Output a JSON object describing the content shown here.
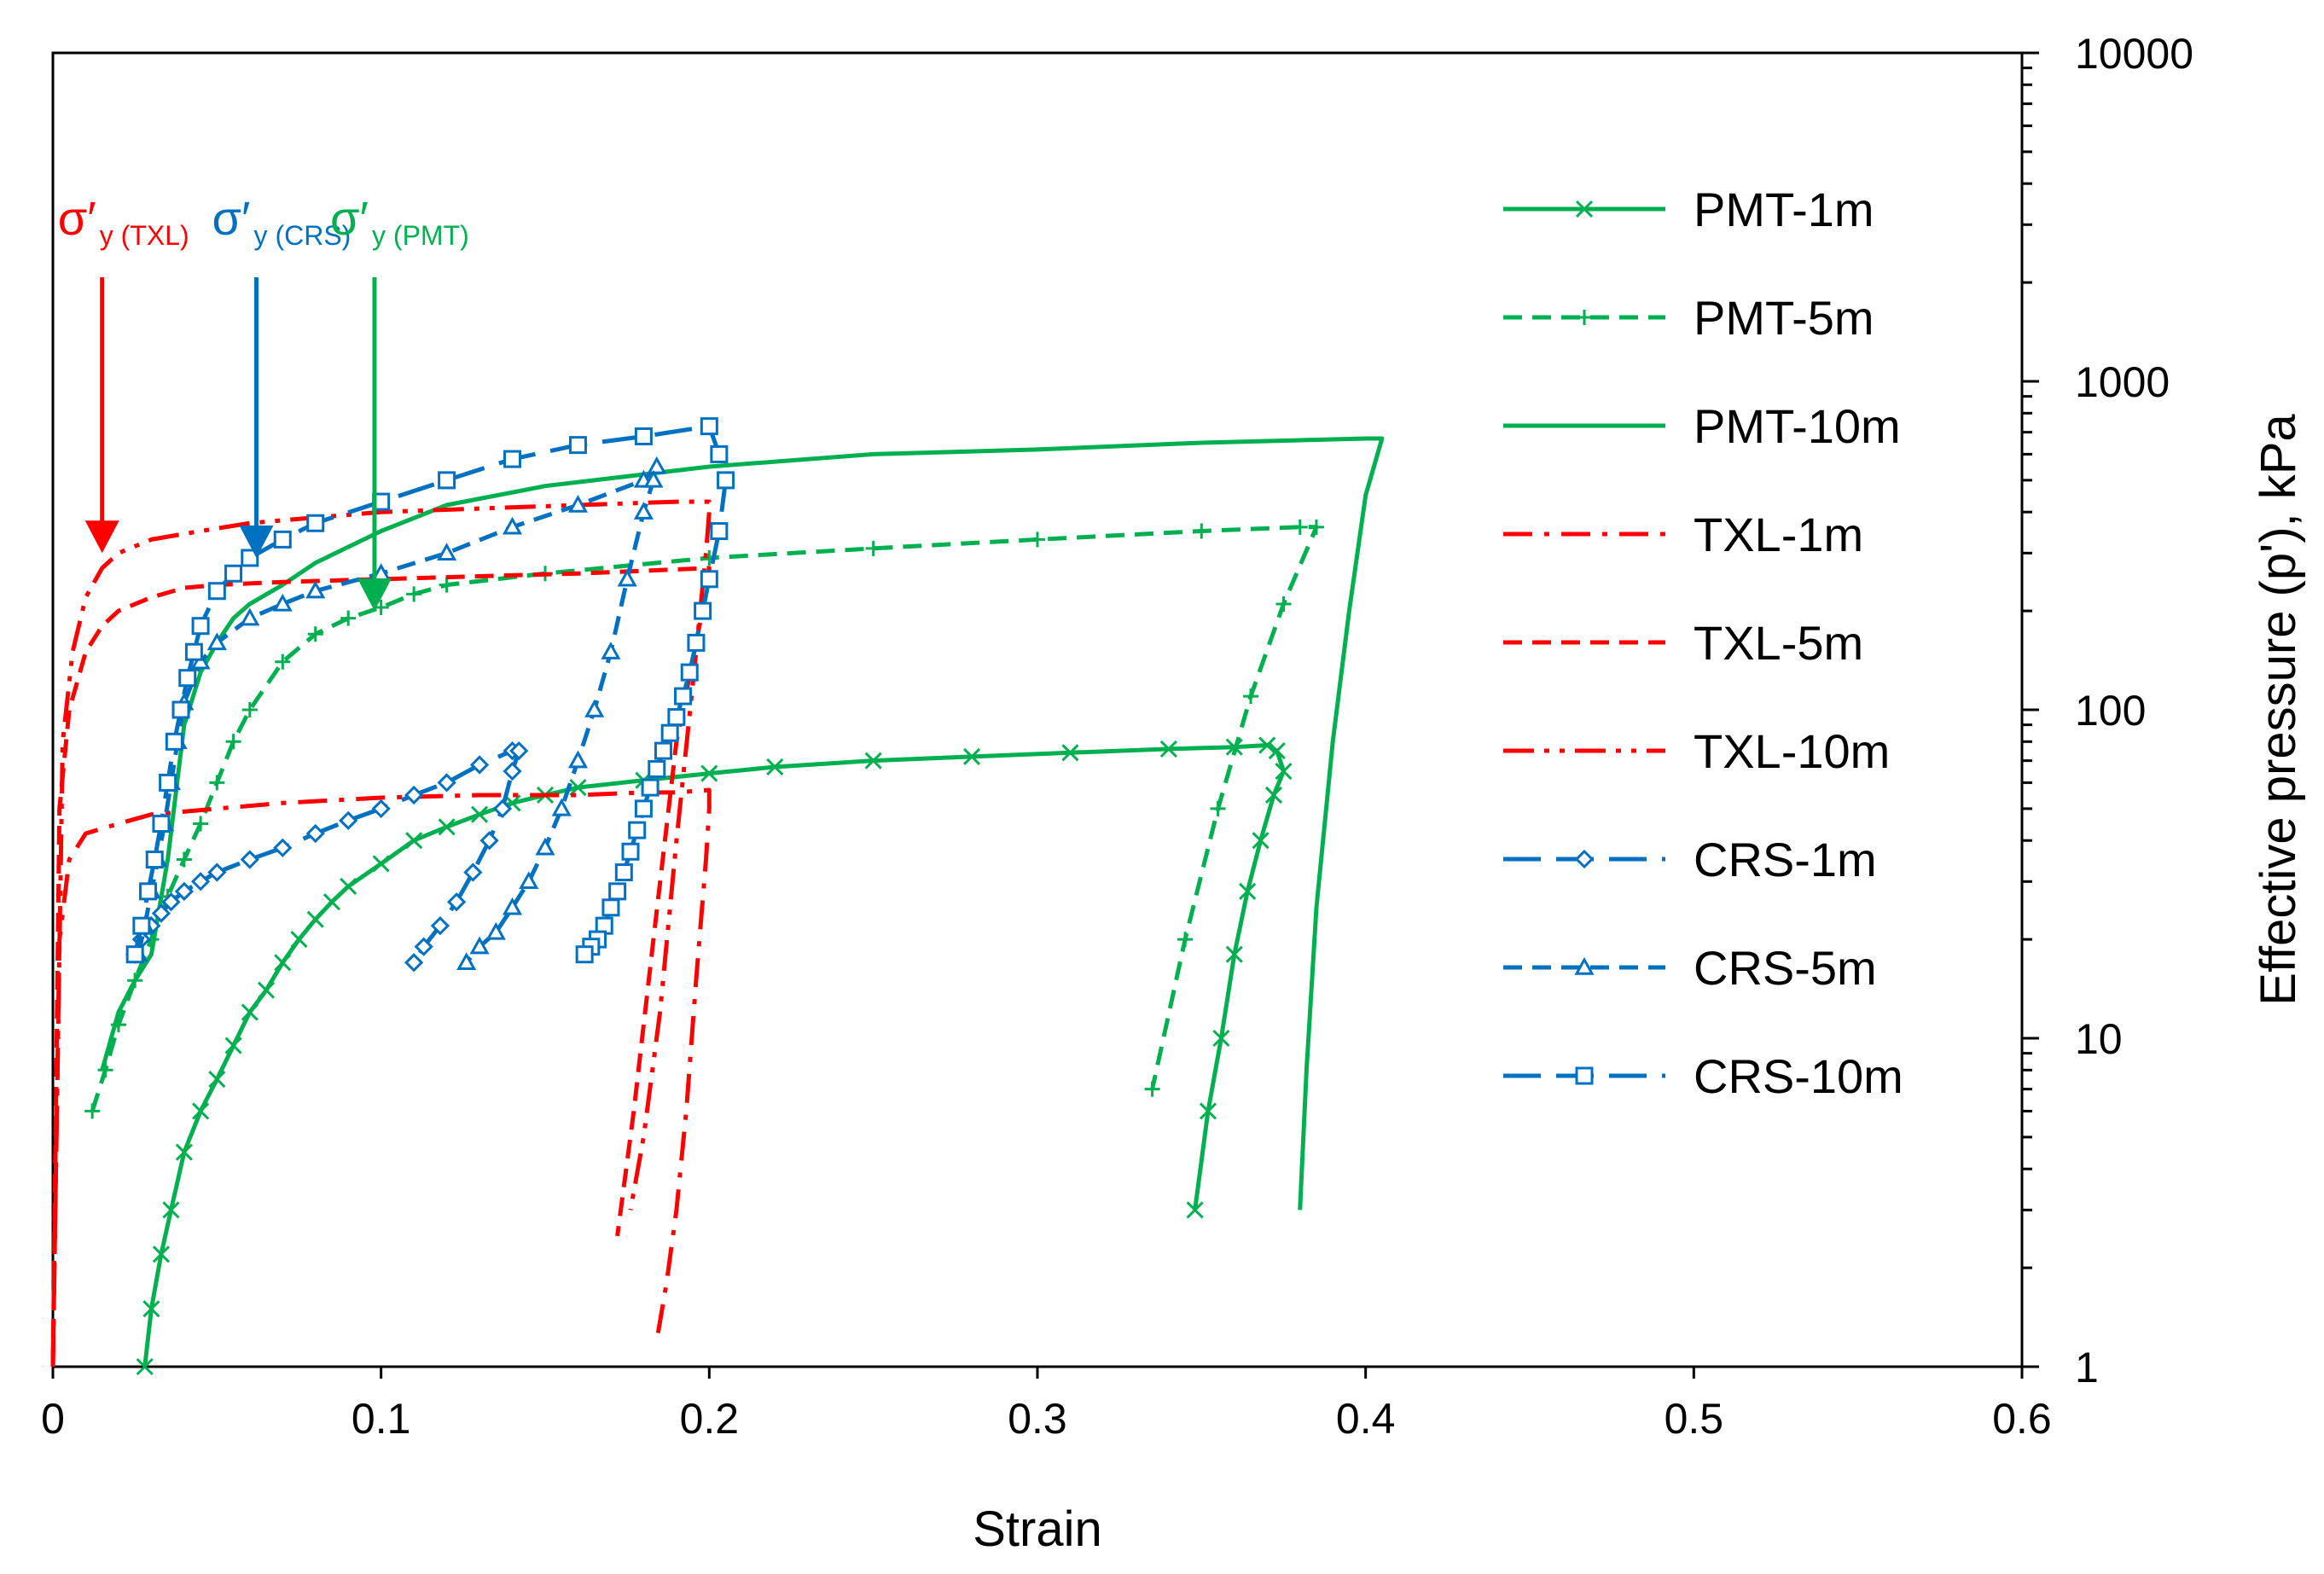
{
  "chart_data": {
    "type": "line",
    "xlabel": "Strain",
    "ylabel": "Effective pressure (p'), kPa",
    "xlim": [
      0,
      0.6
    ],
    "ylim": [
      1,
      10000
    ],
    "yscale": "log",
    "y_axis_side": "right",
    "x_ticks": [
      "0",
      "0.1",
      "0.2",
      "0.3",
      "0.4",
      "0.5",
      "0.6"
    ],
    "y_ticks": [
      "1",
      "10",
      "100",
      "1000",
      "10000"
    ],
    "legend_position": "right",
    "colors": {
      "green": "#00B050",
      "red": "#FF0000",
      "blue": "#0070C0"
    },
    "series": [
      {
        "name": "PMT-1m",
        "color": "#00B050",
        "dash": "solid",
        "marker": "x",
        "x": [
          0.028,
          0.03,
          0.033,
          0.036,
          0.04,
          0.045,
          0.05,
          0.055,
          0.06,
          0.065,
          0.07,
          0.075,
          0.08,
          0.085,
          0.09,
          0.1,
          0.11,
          0.12,
          0.13,
          0.14,
          0.15,
          0.16,
          0.18,
          0.2,
          0.22,
          0.25,
          0.28,
          0.31,
          0.34,
          0.36,
          0.37,
          0.373,
          0.375,
          0.372,
          0.368,
          0.364,
          0.36,
          0.356,
          0.352,
          0.348
        ],
        "y": [
          1,
          1.5,
          2.2,
          3,
          4.5,
          6,
          7.5,
          9.5,
          12,
          14,
          17,
          20,
          23,
          26,
          29,
          34,
          40,
          44,
          48,
          52,
          55,
          58,
          61,
          64,
          67,
          70,
          72,
          74,
          76,
          77,
          78,
          75,
          65,
          55,
          40,
          28,
          18,
          10,
          6,
          3
        ]
      },
      {
        "name": "PMT-5m",
        "color": "#00B050",
        "dash": "dashed",
        "marker": "+",
        "x": [
          0.012,
          0.016,
          0.02,
          0.025,
          0.03,
          0.035,
          0.04,
          0.045,
          0.05,
          0.055,
          0.06,
          0.07,
          0.08,
          0.09,
          0.1,
          0.11,
          0.12,
          0.15,
          0.2,
          0.25,
          0.3,
          0.35,
          0.38,
          0.385,
          0.375,
          0.365,
          0.355,
          0.345,
          0.335
        ],
        "y": [
          6,
          8,
          11,
          15,
          20,
          27,
          35,
          45,
          60,
          80,
          100,
          140,
          170,
          190,
          205,
          225,
          240,
          260,
          290,
          310,
          330,
          350,
          360,
          360,
          210,
          110,
          50,
          20,
          7
        ]
      },
      {
        "name": "PMT-10m",
        "color": "#00B050",
        "dash": "solid",
        "marker": "none",
        "x": [
          0.015,
          0.02,
          0.025,
          0.03,
          0.035,
          0.04,
          0.045,
          0.05,
          0.055,
          0.06,
          0.07,
          0.08,
          0.1,
          0.12,
          0.15,
          0.2,
          0.25,
          0.3,
          0.35,
          0.4,
          0.405,
          0.4,
          0.395,
          0.39,
          0.385,
          0.382,
          0.38
        ],
        "y": [
          8,
          12,
          15,
          18,
          35,
          90,
          130,
          160,
          190,
          210,
          240,
          280,
          350,
          420,
          480,
          550,
          600,
          620,
          650,
          670,
          670,
          450,
          200,
          80,
          25,
          8,
          3
        ]
      },
      {
        "name": "TXL-1m",
        "color": "#FF0000",
        "dash": "dashdot",
        "marker": "none",
        "x": [
          0,
          0.002,
          0.005,
          0.01,
          0.02,
          0.03,
          0.05,
          0.07,
          0.1,
          0.13,
          0.16,
          0.18,
          0.19,
          0.2,
          0.2,
          0.199,
          0.196,
          0.193,
          0.19,
          0.187,
          0.184
        ],
        "y": [
          1,
          20,
          35,
          42,
          45,
          48,
          50,
          52,
          54,
          55,
          55,
          56,
          56,
          57,
          50,
          35,
          15,
          6,
          3,
          1.8,
          1.2
        ]
      },
      {
        "name": "TXL-5m",
        "color": "#FF0000",
        "dash": "dashed",
        "marker": "none",
        "x": [
          0,
          0.002,
          0.005,
          0.01,
          0.015,
          0.02,
          0.03,
          0.04,
          0.05,
          0.07,
          0.1,
          0.13,
          0.16,
          0.18,
          0.2,
          0.2,
          0.197,
          0.19,
          0.183,
          0.177,
          0.172
        ],
        "y": [
          1,
          50,
          100,
          150,
          180,
          200,
          220,
          235,
          240,
          245,
          250,
          255,
          260,
          265,
          270,
          250,
          180,
          80,
          20,
          6,
          2.5
        ]
      },
      {
        "name": "TXL-10m",
        "color": "#FF0000",
        "dash": "dashdotdot",
        "marker": "none",
        "x": [
          0,
          0.003,
          0.006,
          0.01,
          0.015,
          0.02,
          0.03,
          0.045,
          0.06,
          0.08,
          0.1,
          0.13,
          0.16,
          0.19,
          0.2,
          0.2,
          0.199,
          0.195,
          0.19,
          0.185,
          0.18,
          0.176
        ],
        "y": [
          1,
          80,
          150,
          220,
          270,
          300,
          330,
          350,
          370,
          385,
          400,
          410,
          420,
          430,
          430,
          400,
          300,
          120,
          40,
          12,
          5,
          3
        ]
      },
      {
        "name": "CRS-1m",
        "color": "#0070C0",
        "dash": "longdash",
        "marker": "diamond",
        "x": [
          0.025,
          0.027,
          0.03,
          0.033,
          0.036,
          0.04,
          0.045,
          0.05,
          0.06,
          0.07,
          0.08,
          0.09,
          0.1,
          0.11,
          0.12,
          0.13,
          0.14,
          0.142,
          0.14,
          0.137,
          0.133,
          0.128,
          0.123,
          0.118,
          0.113,
          0.11
        ],
        "y": [
          18,
          20,
          22,
          24,
          26,
          28,
          30,
          32,
          35,
          38,
          42,
          46,
          50,
          55,
          60,
          68,
          75,
          75,
          65,
          50,
          40,
          32,
          26,
          22,
          19,
          17
        ]
      },
      {
        "name": "CRS-5m",
        "color": "#0070C0",
        "dash": "dashed",
        "marker": "triangle",
        "x": [
          0.026,
          0.028,
          0.03,
          0.032,
          0.034,
          0.036,
          0.038,
          0.04,
          0.045,
          0.05,
          0.06,
          0.07,
          0.08,
          0.1,
          0.12,
          0.14,
          0.16,
          0.18,
          0.184,
          0.183,
          0.18,
          0.175,
          0.17,
          0.165,
          0.16,
          0.155,
          0.15,
          0.145,
          0.14,
          0.135,
          0.13,
          0.126
        ],
        "y": [
          18,
          22,
          28,
          35,
          45,
          60,
          80,
          105,
          140,
          160,
          190,
          210,
          230,
          260,
          300,
          360,
          420,
          500,
          550,
          500,
          400,
          250,
          150,
          100,
          70,
          50,
          38,
          30,
          25,
          21,
          19,
          17
        ]
      },
      {
        "name": "CRS-10m",
        "color": "#0070C0",
        "dash": "longdash",
        "marker": "square",
        "x": [
          0.025,
          0.027,
          0.029,
          0.031,
          0.033,
          0.035,
          0.037,
          0.039,
          0.041,
          0.043,
          0.045,
          0.05,
          0.055,
          0.06,
          0.07,
          0.08,
          0.1,
          0.12,
          0.14,
          0.16,
          0.18,
          0.2,
          0.203,
          0.205,
          0.203,
          0.2,
          0.198,
          0.196,
          0.194,
          0.192,
          0.19,
          0.188,
          0.186,
          0.184,
          0.182,
          0.18,
          0.178,
          0.176,
          0.174,
          0.172,
          0.17,
          0.168,
          0.166,
          0.164,
          0.162
        ],
        "y": [
          18,
          22,
          28,
          35,
          45,
          60,
          80,
          100,
          125,
          150,
          180,
          230,
          260,
          290,
          330,
          370,
          430,
          500,
          580,
          640,
          680,
          730,
          600,
          500,
          350,
          250,
          200,
          160,
          130,
          110,
          95,
          85,
          75,
          66,
          58,
          50,
          43,
          37,
          32,
          28,
          25,
          22,
          20,
          19,
          18
        ]
      }
    ],
    "annotations": [
      {
        "symbol": "σ′",
        "subscript": "y (TXL)",
        "color": "#FF0000",
        "arrow_x": 0.015,
        "arrow_y": 300
      },
      {
        "symbol": "σ′",
        "subscript": "y (CRS)",
        "color": "#0070C0",
        "arrow_x": 0.062,
        "arrow_y": 290
      },
      {
        "symbol": "σ′",
        "subscript": "y (PMT)",
        "color": "#00B050",
        "arrow_x": 0.098,
        "arrow_y": 200
      }
    ]
  }
}
